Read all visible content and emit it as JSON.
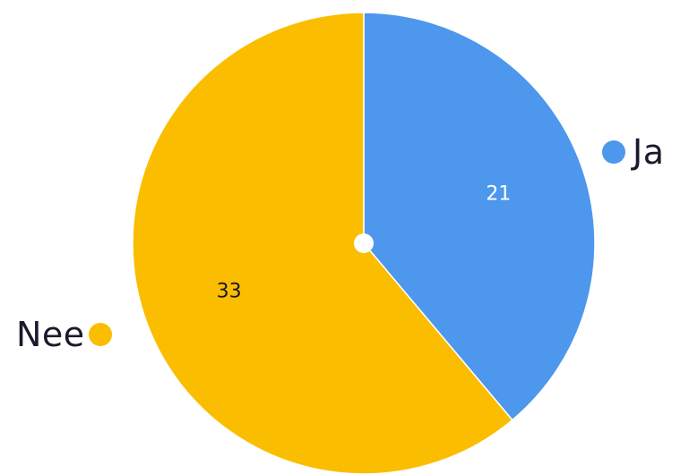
{
  "chart_data": {
    "type": "pie",
    "slices": [
      {
        "label": "Ja",
        "value": 21,
        "color": "#4d97ed",
        "label_color": "#ffffff"
      },
      {
        "label": "Nee",
        "value": 33,
        "color": "#fbbd00",
        "label_color": "#1a1a2e"
      }
    ],
    "title": "",
    "start_angle_deg": 0,
    "direction": "clockwise",
    "center_hole": true,
    "legend": "beside-slices"
  }
}
